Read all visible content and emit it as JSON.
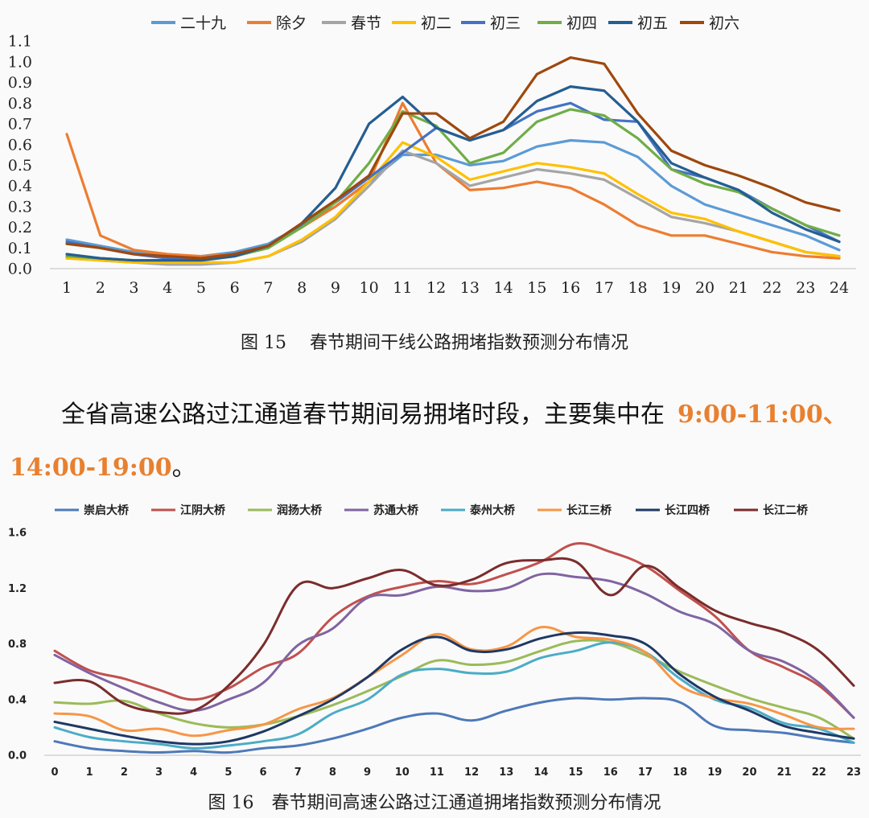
{
  "colors": {
    "accent": "#e8802f"
  },
  "chart_data": [
    {
      "type": "line",
      "title": "",
      "xlabel": "",
      "ylabel": "",
      "x": [
        "1",
        "2",
        "3",
        "4",
        "5",
        "6",
        "7",
        "8",
        "9",
        "10",
        "11",
        "12",
        "13",
        "14",
        "15",
        "16",
        "17",
        "18",
        "19",
        "20",
        "21",
        "22",
        "23",
        "24"
      ],
      "ylim": [
        0,
        1.1
      ],
      "yticks": [
        "0.0",
        "0.1",
        "0.2",
        "0.3",
        "0.4",
        "0.5",
        "0.6",
        "0.7",
        "0.8",
        "0.9",
        "1.0",
        "1.1"
      ],
      "legend_position": "top",
      "grid": false,
      "series": [
        {
          "name": "二十九",
          "color": "#5b9bd5",
          "values": [
            0.14,
            0.11,
            0.08,
            0.06,
            0.06,
            0.08,
            0.12,
            0.21,
            0.3,
            0.42,
            0.55,
            0.55,
            0.5,
            0.52,
            0.59,
            0.62,
            0.61,
            0.54,
            0.4,
            0.31,
            0.26,
            0.21,
            0.16,
            0.09
          ]
        },
        {
          "name": "除夕",
          "color": "#ed7d31",
          "values": [
            0.65,
            0.16,
            0.09,
            0.07,
            0.06,
            0.07,
            0.11,
            0.2,
            0.3,
            0.42,
            0.8,
            0.51,
            0.38,
            0.39,
            0.42,
            0.39,
            0.31,
            0.21,
            0.16,
            0.16,
            0.12,
            0.08,
            0.06,
            0.05
          ]
        },
        {
          "name": "春节",
          "color": "#a5a5a5",
          "values": [
            0.05,
            0.04,
            0.03,
            0.02,
            0.02,
            0.03,
            0.06,
            0.13,
            0.24,
            0.4,
            0.57,
            0.51,
            0.4,
            0.44,
            0.48,
            0.46,
            0.43,
            0.34,
            0.25,
            0.22,
            0.18,
            0.13,
            0.08,
            0.06
          ]
        },
        {
          "name": "初二",
          "color": "#ffc000",
          "values": [
            0.05,
            0.04,
            0.03,
            0.03,
            0.03,
            0.03,
            0.06,
            0.14,
            0.25,
            0.42,
            0.61,
            0.54,
            0.43,
            0.47,
            0.51,
            0.49,
            0.46,
            0.36,
            0.27,
            0.24,
            0.18,
            0.13,
            0.08,
            0.06
          ]
        },
        {
          "name": "初三",
          "color": "#4472c4",
          "values": [
            0.13,
            0.1,
            0.07,
            0.05,
            0.05,
            0.07,
            0.11,
            0.21,
            0.32,
            0.44,
            0.56,
            0.68,
            0.62,
            0.67,
            0.76,
            0.8,
            0.72,
            0.71,
            0.48,
            0.44,
            0.38,
            0.29,
            0.21,
            0.13
          ]
        },
        {
          "name": "初四",
          "color": "#70ad47",
          "values": [
            0.06,
            0.05,
            0.04,
            0.04,
            0.04,
            0.06,
            0.1,
            0.2,
            0.32,
            0.51,
            0.76,
            0.69,
            0.51,
            0.56,
            0.71,
            0.77,
            0.74,
            0.63,
            0.48,
            0.41,
            0.37,
            0.29,
            0.21,
            0.16
          ]
        },
        {
          "name": "初五",
          "color": "#255e91",
          "values": [
            0.07,
            0.05,
            0.04,
            0.04,
            0.04,
            0.06,
            0.11,
            0.22,
            0.39,
            0.7,
            0.83,
            0.68,
            0.62,
            0.67,
            0.81,
            0.88,
            0.86,
            0.71,
            0.51,
            0.44,
            0.38,
            0.27,
            0.19,
            0.13
          ]
        },
        {
          "name": "初六",
          "color": "#9e480e",
          "values": [
            0.12,
            0.1,
            0.07,
            0.06,
            0.05,
            0.07,
            0.11,
            0.22,
            0.33,
            0.45,
            0.75,
            0.75,
            0.63,
            0.71,
            0.94,
            1.02,
            0.99,
            0.75,
            0.57,
            0.5,
            0.45,
            0.39,
            0.32,
            0.28
          ]
        }
      ]
    },
    {
      "type": "line",
      "title": "",
      "xlabel": "",
      "ylabel": "",
      "x": [
        "0",
        "1",
        "2",
        "3",
        "4",
        "5",
        "6",
        "7",
        "8",
        "9",
        "10",
        "11",
        "12",
        "13",
        "14",
        "15",
        "16",
        "17",
        "18",
        "19",
        "20",
        "21",
        "22",
        "23"
      ],
      "ylim": [
        0,
        1.6
      ],
      "yticks": [
        "0.0",
        "0.4",
        "0.8",
        "1.2",
        "1.6"
      ],
      "legend_position": "top",
      "grid": false,
      "series": [
        {
          "name": "崇启大桥",
          "color": "#4e79b8",
          "values": [
            0.1,
            0.05,
            0.03,
            0.02,
            0.03,
            0.02,
            0.05,
            0.07,
            0.12,
            0.19,
            0.27,
            0.3,
            0.25,
            0.32,
            0.38,
            0.41,
            0.4,
            0.41,
            0.38,
            0.21,
            0.18,
            0.16,
            0.12,
            0.09
          ]
        },
        {
          "name": "江阴大桥",
          "color": "#c0504d",
          "values": [
            0.75,
            0.61,
            0.55,
            0.47,
            0.4,
            0.48,
            0.63,
            0.73,
            0.99,
            1.14,
            1.21,
            1.25,
            1.23,
            1.3,
            1.39,
            1.52,
            1.46,
            1.36,
            1.18,
            1.0,
            0.75,
            0.63,
            0.5,
            0.27
          ]
        },
        {
          "name": "润扬大桥",
          "color": "#9bbb59",
          "values": [
            0.38,
            0.37,
            0.39,
            0.3,
            0.23,
            0.2,
            0.22,
            0.28,
            0.36,
            0.46,
            0.57,
            0.68,
            0.65,
            0.67,
            0.75,
            0.82,
            0.81,
            0.72,
            0.6,
            0.5,
            0.41,
            0.34,
            0.27,
            0.12
          ]
        },
        {
          "name": "苏通大桥",
          "color": "#8064a2",
          "values": [
            0.72,
            0.59,
            0.48,
            0.38,
            0.32,
            0.4,
            0.52,
            0.79,
            0.91,
            1.13,
            1.15,
            1.21,
            1.18,
            1.2,
            1.3,
            1.28,
            1.25,
            1.16,
            1.03,
            0.94,
            0.75,
            0.67,
            0.52,
            0.27
          ]
        },
        {
          "name": "泰州大桥",
          "color": "#4bacc6",
          "values": [
            0.2,
            0.13,
            0.1,
            0.08,
            0.05,
            0.07,
            0.1,
            0.15,
            0.3,
            0.4,
            0.58,
            0.62,
            0.59,
            0.6,
            0.7,
            0.75,
            0.81,
            0.74,
            0.55,
            0.4,
            0.34,
            0.23,
            0.19,
            0.09
          ]
        },
        {
          "name": "长江三桥",
          "color": "#f79646",
          "values": [
            0.3,
            0.28,
            0.18,
            0.19,
            0.14,
            0.18,
            0.22,
            0.33,
            0.41,
            0.56,
            0.72,
            0.87,
            0.76,
            0.78,
            0.92,
            0.85,
            0.83,
            0.74,
            0.5,
            0.41,
            0.37,
            0.29,
            0.2,
            0.19
          ]
        },
        {
          "name": "长江四桥",
          "color": "#1f3864",
          "values": [
            0.24,
            0.19,
            0.14,
            0.1,
            0.08,
            0.1,
            0.17,
            0.28,
            0.4,
            0.56,
            0.76,
            0.85,
            0.75,
            0.76,
            0.84,
            0.88,
            0.86,
            0.8,
            0.58,
            0.42,
            0.32,
            0.21,
            0.16,
            0.12
          ]
        },
        {
          "name": "长江二桥",
          "color": "#7b2c2c",
          "values": [
            0.52,
            0.53,
            0.37,
            0.31,
            0.32,
            0.5,
            0.79,
            1.22,
            1.2,
            1.27,
            1.33,
            1.22,
            1.26,
            1.38,
            1.4,
            1.39,
            1.15,
            1.36,
            1.2,
            1.04,
            0.95,
            0.88,
            0.75,
            0.5
          ]
        }
      ]
    }
  ],
  "caption1": "图 15　 春节期间干线公路拥堵指数预测分布情况",
  "paragraph": {
    "text1": "全省高速公路过江通道春节期间易拥堵时段，主要集中在",
    "highlight1": "9:00-11:00、",
    "highlight2": "14:00-19:00",
    "text2": "。"
  },
  "caption2": "图 16　春节期间高速公路过江通道拥堵指数预测分布情况"
}
